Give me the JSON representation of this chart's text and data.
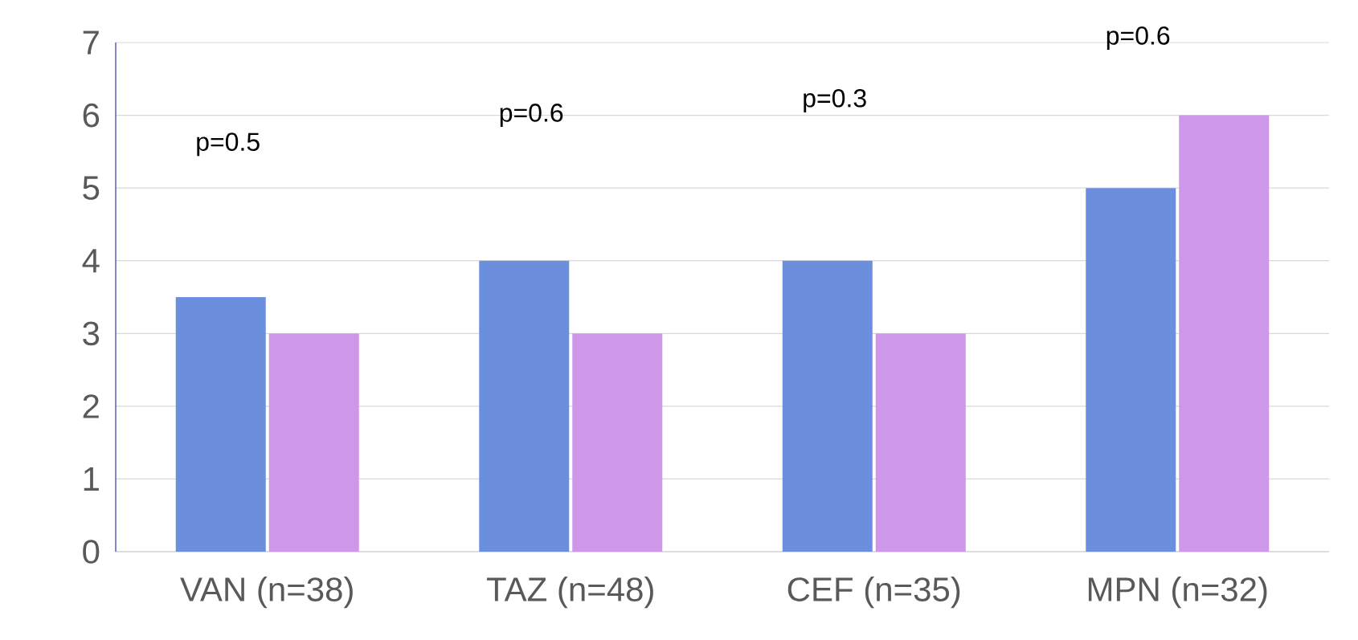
{
  "chart_data": {
    "type": "bar",
    "categories": [
      "VAN (n=38)",
      "TAZ (n=48)",
      "CEF (n=35)",
      "MPN (n=32)"
    ],
    "series": [
      {
        "color": "#6b8fdc",
        "values": [
          3.5,
          4,
          4,
          5
        ]
      },
      {
        "color": "#cf97e8",
        "values": [
          3,
          3,
          3,
          6
        ]
      }
    ],
    "ylim": [
      0,
      7
    ],
    "yticks": [
      0,
      1,
      2,
      3,
      4,
      5,
      6,
      7
    ],
    "grid": "y",
    "annotations": [
      "p=0.5",
      "p=0.6",
      "p=0.3",
      "p=0.6"
    ]
  }
}
